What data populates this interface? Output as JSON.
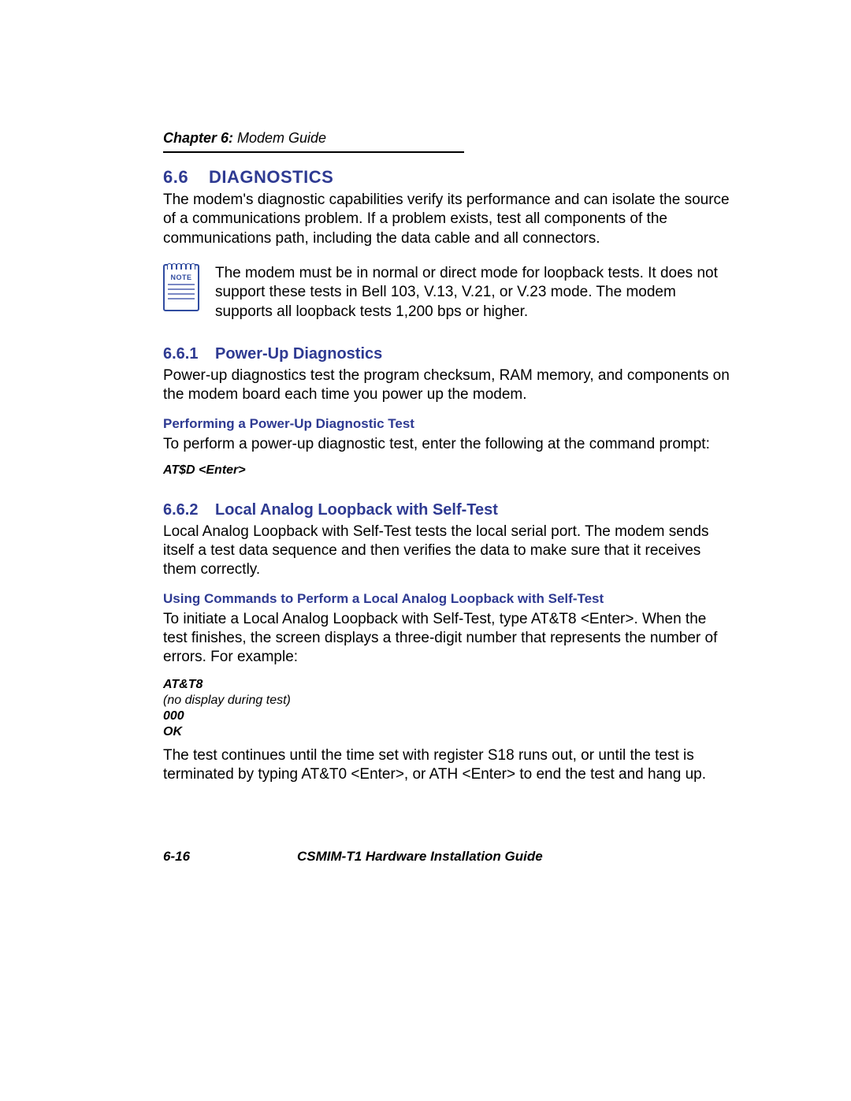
{
  "header": {
    "chapter_label": "Chapter 6:",
    "chapter_title": " Modem Guide"
  },
  "section_6_6": {
    "num": "6.6",
    "title": "DIAGNOSTICS",
    "body": "The modem's diagnostic capabilities verify its performance and can isolate the source of a communications problem. If a problem exists, test all components of the communications path, including the data cable and all connectors."
  },
  "note": {
    "icon_label": "NOTE",
    "text": "The modem must be in normal or direct mode for loopback tests. It does not support these tests in Bell 103, V.13, V.21, or V.23 mode. The modem supports all loopback tests 1,200 bps or higher."
  },
  "section_6_6_1": {
    "num": "6.6.1",
    "title": "Power-Up Diagnostics",
    "body": "Power-up diagnostics test the program checksum, RAM memory, and components on the modem board each time you power up the modem.",
    "sub_title": "Performing a Power-Up Diagnostic Test",
    "sub_body": "To perform a power-up diagnostic test, enter the following at the command prompt:",
    "code": "AT$D <Enter>"
  },
  "section_6_6_2": {
    "num": "6.6.2",
    "title": "Local Analog Loopback with Self-Test",
    "body": "Local Analog Loopback with Self-Test tests the local serial port. The modem sends itself a test data sequence and then verifies the data to make sure that it receives them correctly.",
    "sub_title": "Using Commands to Perform a Local Analog Loopback with Self-Test",
    "sub_body": "To initiate a Local Analog Loopback with Self-Test, type AT&T8 <Enter>. When the test finishes, the screen displays a three-digit number that represents the number of errors. For example:",
    "code": {
      "line1": "AT&T8",
      "line2": "no display during test)",
      "line3": "000",
      "line4": "OK"
    },
    "trailing": "The test continues until the time set with register S18 runs out, or until the test is terminated by typing AT&T0 <Enter>, or ATH <Enter> to end the test and hang up."
  },
  "footer": {
    "page_num": "6-16",
    "doc_title": "CSMIM-T1 Hardware Installation Guide"
  }
}
